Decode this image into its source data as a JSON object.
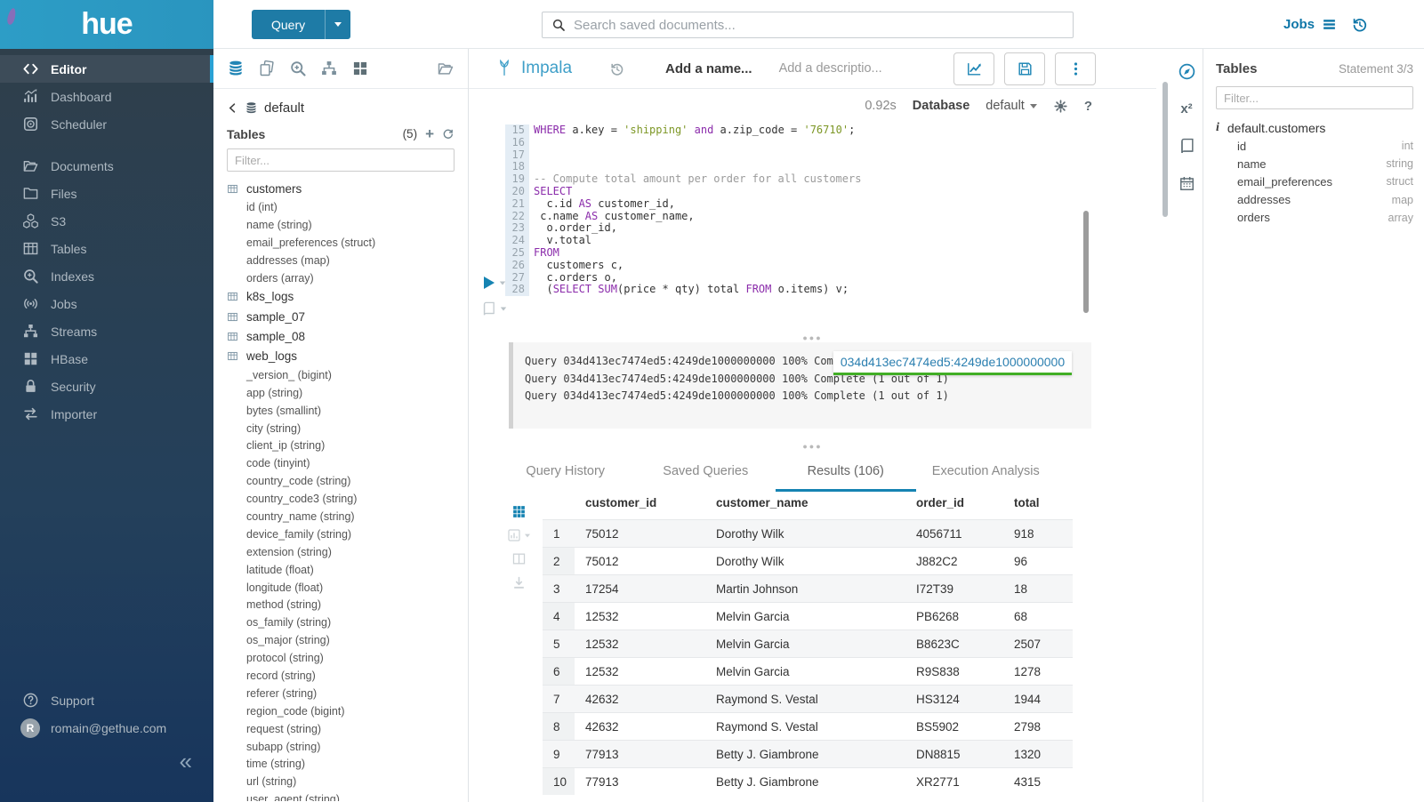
{
  "colors": {
    "brand_cyan": "#2d9dc6",
    "button_blue": "#1e7ba6",
    "accent_blue": "#1583b2",
    "link_blue": "#0e76a8",
    "sidebar_accent": "#2aa2d5",
    "sql_keyword": "#8b2cab",
    "sql_string": "#7d9726",
    "sql_comment": "#9b9b9b",
    "popover_green": "#41ae25"
  },
  "topbar": {
    "logo_text": "hue",
    "query_button": "Query",
    "search_placeholder": "Search saved documents...",
    "jobs_label": "Jobs"
  },
  "sidebar": {
    "items": [
      {
        "label": "Editor",
        "icon": "code",
        "active": true
      },
      {
        "label": "Dashboard",
        "icon": "dashboard"
      },
      {
        "label": "Scheduler",
        "icon": "scheduler"
      },
      {
        "label": "Documents",
        "icon": "documents",
        "group_break": true
      },
      {
        "label": "Files",
        "icon": "folder"
      },
      {
        "label": "S3",
        "icon": "cubes"
      },
      {
        "label": "Tables",
        "icon": "table"
      },
      {
        "label": "Indexes",
        "icon": "search-plus"
      },
      {
        "label": "Jobs",
        "icon": "broadcast"
      },
      {
        "label": "Streams",
        "icon": "sitemap"
      },
      {
        "label": "HBase",
        "icon": "blocks"
      },
      {
        "label": "Security",
        "icon": "lock"
      },
      {
        "label": "Importer",
        "icon": "swap"
      }
    ],
    "support_label": "Support",
    "user_initial": "R",
    "user_email": "romain@gethue.com"
  },
  "assist": {
    "breadcrumb_db": "default",
    "header": "Tables",
    "count": "(5)",
    "filter_placeholder": "Filter...",
    "tables": [
      {
        "name": "customers",
        "columns": [
          "id (int)",
          "name (string)",
          "email_preferences (struct)",
          "addresses (map)",
          "orders (array)"
        ]
      },
      {
        "name": "k8s_logs",
        "columns": []
      },
      {
        "name": "sample_07",
        "columns": []
      },
      {
        "name": "sample_08",
        "columns": []
      },
      {
        "name": "web_logs",
        "columns": [
          "_version_ (bigint)",
          "app (string)",
          "bytes (smallint)",
          "city (string)",
          "client_ip (string)",
          "code (tinyint)",
          "country_code (string)",
          "country_code3 (string)",
          "country_name (string)",
          "device_family (string)",
          "extension (string)",
          "latitude (float)",
          "longitude (float)",
          "method (string)",
          "os_family (string)",
          "os_major (string)",
          "protocol (string)",
          "record (string)",
          "referer (string)",
          "region_code (bigint)",
          "request (string)",
          "subapp (string)",
          "time (string)",
          "url (string)",
          "user_agent (string)"
        ]
      }
    ]
  },
  "editor": {
    "engine": "Impala",
    "name_placeholder": "Add a name...",
    "description_placeholder": "Add a descriptio...",
    "duration": "0.92s",
    "database_label": "Database",
    "database_value": "default",
    "lines": [
      {
        "n": 15,
        "seg": [
          [
            "k",
            "WHERE"
          ],
          [
            "t",
            " a.key = "
          ],
          [
            "s",
            "'shipping'"
          ],
          [
            "t",
            " "
          ],
          [
            "k",
            "and"
          ],
          [
            "t",
            " a.zip_code = "
          ],
          [
            "s",
            "'76710'"
          ],
          [
            "t",
            ";"
          ]
        ]
      },
      {
        "n": 16,
        "seg": []
      },
      {
        "n": 17,
        "seg": []
      },
      {
        "n": 18,
        "seg": []
      },
      {
        "n": 19,
        "seg": [
          [
            "c",
            "-- Compute total amount per order for all customers"
          ]
        ]
      },
      {
        "n": 20,
        "seg": [
          [
            "k",
            "SELECT"
          ]
        ]
      },
      {
        "n": 21,
        "seg": [
          [
            "t",
            "  c.id "
          ],
          [
            "k",
            "AS"
          ],
          [
            "t",
            " customer_id,"
          ]
        ]
      },
      {
        "n": 22,
        "seg": [
          [
            "t",
            " c.name "
          ],
          [
            "k",
            "AS"
          ],
          [
            "t",
            " customer_name,"
          ]
        ]
      },
      {
        "n": 23,
        "seg": [
          [
            "t",
            "  o.order_id,"
          ]
        ]
      },
      {
        "n": 24,
        "seg": [
          [
            "t",
            "  v.total"
          ]
        ]
      },
      {
        "n": 25,
        "seg": [
          [
            "k",
            "FROM"
          ]
        ]
      },
      {
        "n": 26,
        "seg": [
          [
            "t",
            "  customers c,"
          ]
        ]
      },
      {
        "n": 27,
        "seg": [
          [
            "t",
            "  c.orders o,"
          ]
        ]
      },
      {
        "n": 28,
        "seg": [
          [
            "t",
            "  ("
          ],
          [
            "k",
            "SELECT"
          ],
          [
            "t",
            " "
          ],
          [
            "k",
            "SUM"
          ],
          [
            "t",
            "(price * qty) total "
          ],
          [
            "k",
            "FROM"
          ],
          [
            "t",
            " o.items) v;"
          ]
        ]
      }
    ]
  },
  "log": {
    "lines": [
      "Query 034d413ec7474ed5:4249de1000000000 100% Complete (1 out of 1)",
      "Query 034d413ec7474ed5:4249de1000000000 100% Complete (1 out of 1)",
      "Query 034d413ec7474ed5:4249de1000000000 100% Complete (1 out of 1)"
    ],
    "popover_text": "034d413ec7474ed5:4249de1000000000"
  },
  "tabs": {
    "items": [
      {
        "label": "Query History",
        "active": false
      },
      {
        "label": "Saved Queries",
        "active": false
      },
      {
        "label": "Results (106)",
        "active": true
      },
      {
        "label": "Execution Analysis",
        "active": false
      }
    ]
  },
  "results": {
    "columns": [
      "customer_id",
      "customer_name",
      "order_id",
      "total"
    ],
    "rows": [
      [
        "1",
        "75012",
        "Dorothy Wilk",
        "4056711",
        "918"
      ],
      [
        "2",
        "75012",
        "Dorothy Wilk",
        "J882C2",
        "96"
      ],
      [
        "3",
        "17254",
        "Martin Johnson",
        "I72T39",
        "18"
      ],
      [
        "4",
        "12532",
        "Melvin Garcia",
        "PB6268",
        "68"
      ],
      [
        "5",
        "12532",
        "Melvin Garcia",
        "B8623C",
        "2507"
      ],
      [
        "6",
        "12532",
        "Melvin Garcia",
        "R9S838",
        "1278"
      ],
      [
        "7",
        "42632",
        "Raymond S. Vestal",
        "HS3124",
        "1944"
      ],
      [
        "8",
        "42632",
        "Raymond S. Vestal",
        "BS5902",
        "2798"
      ],
      [
        "9",
        "77913",
        "Betty J. Giambrone",
        "DN8815",
        "1320"
      ],
      [
        "10",
        "77913",
        "Betty J. Giambrone",
        "XR2771",
        "4315"
      ]
    ]
  },
  "right_panel": {
    "header": "Tables",
    "statement": "Statement 3/3",
    "filter_placeholder": "Filter...",
    "table_name": "default.customers",
    "columns": [
      {
        "name": "id",
        "type": "int"
      },
      {
        "name": "name",
        "type": "string"
      },
      {
        "name": "email_preferences",
        "type": "struct"
      },
      {
        "name": "addresses",
        "type": "map"
      },
      {
        "name": "orders",
        "type": "array"
      }
    ]
  }
}
